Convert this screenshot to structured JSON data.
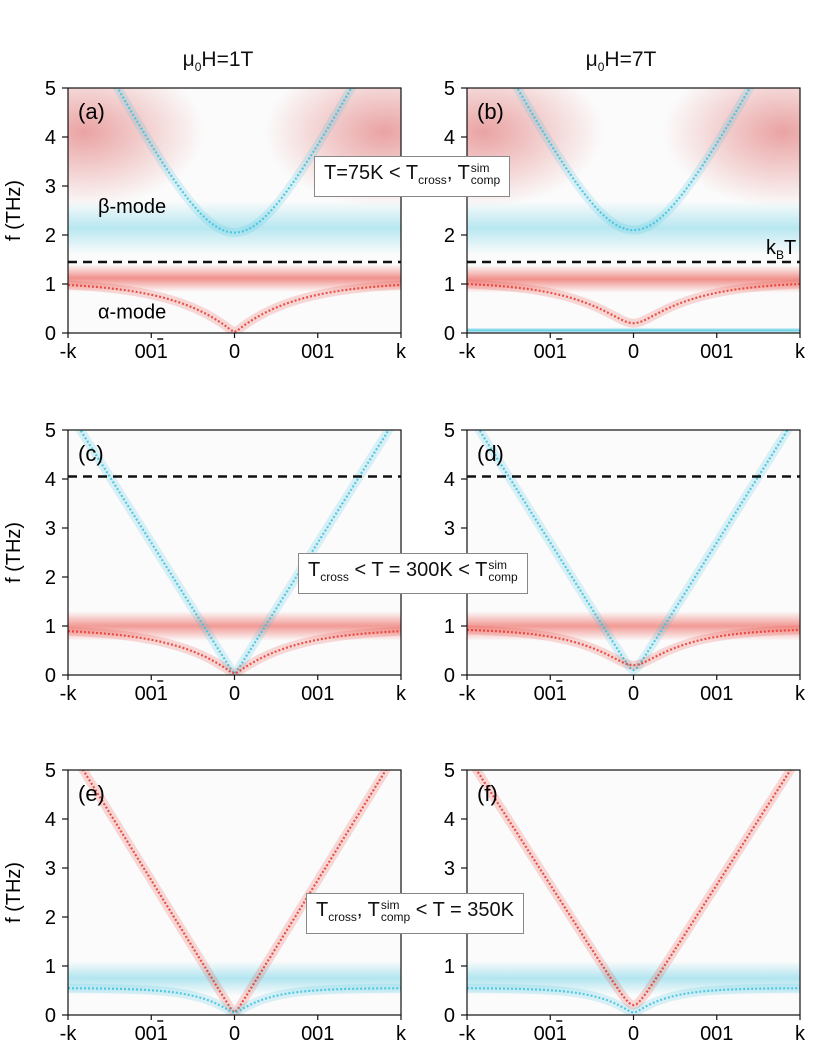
{
  "figure": {
    "column_headers": [
      {
        "prefix": "μ",
        "sub": "0",
        "suffix": "H=1T"
      },
      {
        "prefix": "μ",
        "sub": "0",
        "suffix": "H=7T"
      }
    ],
    "annotations": [
      {
        "parts": [
          [
            "t",
            "T=75K < T"
          ],
          [
            "sub",
            "cross"
          ],
          [
            "t",
            ", T"
          ],
          [
            "supsub",
            "sim",
            "comp"
          ]
        ]
      },
      {
        "parts": [
          [
            "t",
            "T"
          ],
          [
            "sub",
            "cross"
          ],
          [
            "t",
            " < T = 300K < T"
          ],
          [
            "supsub",
            "sim",
            "comp"
          ]
        ]
      },
      {
        "parts": [
          [
            "t",
            "T"
          ],
          [
            "sub",
            "cross"
          ],
          [
            "t",
            ", T"
          ],
          [
            "supsub",
            "sim",
            "comp"
          ],
          [
            "t",
            " < T = 350K"
          ]
        ]
      }
    ],
    "colors": {
      "red": "#e8392f",
      "blue": "#3cc2de",
      "dash": "#111111",
      "box_border": "#888888"
    }
  },
  "chart_data": [
    {
      "id": "a",
      "type": "heatmap",
      "panel_label": "(a)",
      "field": "1T",
      "temperature": "75K",
      "xlabel": "",
      "ylabel": "f (THz)",
      "ylim": [
        0,
        5
      ],
      "yticks": [
        "0",
        "1",
        "2",
        "3",
        "4",
        "5"
      ],
      "xticks": [
        "-k",
        "001",
        "0",
        "001",
        "k"
      ],
      "mode_labels": [
        {
          "text": "β-mode",
          "x": -0.82,
          "y": 2.45
        },
        {
          "text": "α-mode",
          "x": -0.82,
          "y": 0.3
        }
      ],
      "dashed_line": {
        "y": 1.45,
        "label": ""
      },
      "series": [
        {
          "name": "beta-branch",
          "color": "blue",
          "gap": 2.05,
          "slope": 6.5
        },
        {
          "name": "alpha-branch",
          "color": "red",
          "gap": 0.02,
          "slope": 2.8,
          "sat": 1.05
        }
      ],
      "bands": [
        {
          "color": "red",
          "center": 1.12,
          "width": 0.28,
          "strength": 0.55
        },
        {
          "color": "blue",
          "center": 2.15,
          "width": 0.55,
          "strength": 0.35
        }
      ]
    },
    {
      "id": "b",
      "type": "heatmap",
      "panel_label": "(b)",
      "field": "7T",
      "temperature": "75K",
      "xlabel": "",
      "ylabel": "",
      "ylim": [
        0,
        5
      ],
      "yticks": [
        "0",
        "1",
        "2",
        "3",
        "4",
        "5"
      ],
      "xticks": [
        "-k",
        "001",
        "0",
        "001",
        "k"
      ],
      "mode_labels": [],
      "dashed_line": {
        "y": 1.45,
        "label": "k_BT"
      },
      "series": [
        {
          "name": "beta-branch",
          "color": "blue",
          "gap": 2.1,
          "slope": 6.5
        },
        {
          "name": "alpha-branch",
          "color": "red",
          "gap": 0.2,
          "slope": 2.6,
          "sat": 1.05
        }
      ],
      "bands": [
        {
          "color": "red",
          "center": 1.1,
          "width": 0.28,
          "strength": 0.55
        },
        {
          "color": "blue",
          "center": 2.15,
          "width": 0.55,
          "strength": 0.35
        },
        {
          "color": "blue",
          "center": 0.05,
          "width": 0.06,
          "strength": 0.8
        }
      ]
    },
    {
      "id": "c",
      "type": "heatmap",
      "panel_label": "(c)",
      "field": "1T",
      "temperature": "300K",
      "xlabel": "",
      "ylabel": "f (THz)",
      "ylim": [
        0,
        5
      ],
      "yticks": [
        "0",
        "1",
        "2",
        "3",
        "4",
        "5"
      ],
      "xticks": [
        "-k",
        "001",
        "0",
        "001",
        "k"
      ],
      "mode_labels": [],
      "dashed_line": {
        "y": 4.05,
        "label": ""
      },
      "series": [
        {
          "name": "beta-branch",
          "color": "blue",
          "gap": 0.03,
          "slope": 5.4
        },
        {
          "name": "alpha-branch",
          "color": "red",
          "gap": 0.03,
          "slope": 2.6,
          "sat": 0.95
        }
      ],
      "bands": [
        {
          "color": "red",
          "center": 1.0,
          "width": 0.3,
          "strength": 0.5
        }
      ]
    },
    {
      "id": "d",
      "type": "heatmap",
      "panel_label": "(d)",
      "field": "7T",
      "temperature": "300K",
      "xlabel": "",
      "ylabel": "",
      "ylim": [
        0,
        5
      ],
      "yticks": [
        "0",
        "1",
        "2",
        "3",
        "4",
        "5"
      ],
      "xticks": [
        "-k",
        "001",
        "0",
        "001",
        "k"
      ],
      "mode_labels": [],
      "dashed_line": {
        "y": 4.05,
        "label": ""
      },
      "series": [
        {
          "name": "beta-branch",
          "color": "blue",
          "gap": 0.1,
          "slope": 5.4
        },
        {
          "name": "alpha-branch",
          "color": "red",
          "gap": 0.2,
          "slope": 2.6,
          "sat": 0.95
        }
      ],
      "bands": [
        {
          "color": "red",
          "center": 1.0,
          "width": 0.3,
          "strength": 0.5
        }
      ]
    },
    {
      "id": "e",
      "type": "heatmap",
      "panel_label": "(e)",
      "field": "1T",
      "temperature": "350K",
      "xlabel": "",
      "ylabel": "f (THz)",
      "ylim": [
        0,
        5
      ],
      "yticks": [
        "0",
        "1",
        "2",
        "3",
        "4",
        "5"
      ],
      "xticks": [
        "-k",
        "001",
        "0",
        "001",
        "k"
      ],
      "mode_labels": [],
      "dashed_line": null,
      "series": [
        {
          "name": "red-branch",
          "color": "red",
          "gap": 0.05,
          "slope": 5.5
        },
        {
          "name": "blue-branch",
          "color": "blue",
          "gap": 0.05,
          "slope": 2.5,
          "sat": 0.55
        }
      ],
      "bands": [
        {
          "color": "blue",
          "center": 0.75,
          "width": 0.35,
          "strength": 0.38
        }
      ]
    },
    {
      "id": "f",
      "type": "heatmap",
      "panel_label": "(f)",
      "field": "7T",
      "temperature": "350K",
      "xlabel": "",
      "ylabel": "",
      "ylim": [
        0,
        5
      ],
      "yticks": [
        "0",
        "1",
        "2",
        "3",
        "4",
        "5"
      ],
      "xticks": [
        "-k",
        "001",
        "0",
        "001",
        "k"
      ],
      "mode_labels": [],
      "dashed_line": null,
      "series": [
        {
          "name": "red-branch",
          "color": "red",
          "gap": 0.2,
          "slope": 5.3
        },
        {
          "name": "blue-branch",
          "color": "blue",
          "gap": 0.05,
          "slope": 2.5,
          "sat": 0.55
        }
      ],
      "bands": [
        {
          "color": "blue",
          "center": 0.75,
          "width": 0.35,
          "strength": 0.38
        }
      ]
    }
  ]
}
